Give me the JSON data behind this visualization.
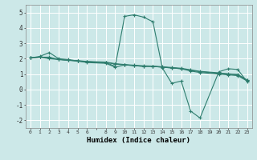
{
  "xlabel": "Humidex (Indice chaleur)",
  "ylabel": "",
  "bg_color": "#cce8e8",
  "grid_color": "#ffffff",
  "line_color": "#2e7d6e",
  "xlim": [
    -0.5,
    23.5
  ],
  "ylim": [
    -2.5,
    5.5
  ],
  "yticks": [
    -2,
    -1,
    0,
    1,
    2,
    3,
    4,
    5
  ],
  "xtick_vals": [
    0,
    1,
    2,
    3,
    4,
    5,
    6,
    8,
    9,
    10,
    11,
    12,
    13,
    14,
    15,
    16,
    17,
    18,
    19,
    20,
    21,
    22,
    23
  ],
  "lines": [
    {
      "x": [
        0,
        1,
        2,
        3,
        4,
        5,
        6,
        8,
        9,
        10,
        11,
        12,
        13,
        14,
        15,
        16,
        17,
        18,
        20,
        21,
        22,
        23
      ],
      "y": [
        2.05,
        2.15,
        2.4,
        2.0,
        1.95,
        1.85,
        1.8,
        1.75,
        1.5,
        4.75,
        4.85,
        4.7,
        4.4,
        1.4,
        0.4,
        0.55,
        -1.4,
        -1.85,
        1.15,
        1.35,
        1.3,
        0.5
      ]
    },
    {
      "x": [
        0,
        1,
        2,
        3,
        4,
        5,
        6,
        8,
        9,
        10,
        11,
        12,
        13,
        14,
        15,
        16,
        17,
        18,
        20,
        21,
        22,
        23
      ],
      "y": [
        2.05,
        2.1,
        2.1,
        1.95,
        1.9,
        1.85,
        1.75,
        1.7,
        1.45,
        1.6,
        1.55,
        1.5,
        1.5,
        1.45,
        1.4,
        1.35,
        1.2,
        1.1,
        1.0,
        0.95,
        0.9,
        0.55
      ]
    },
    {
      "x": [
        0,
        1,
        2,
        3,
        4,
        5,
        6,
        8,
        9,
        10,
        11,
        12,
        13,
        14,
        15,
        16,
        17,
        18,
        20,
        21,
        22,
        23
      ],
      "y": [
        2.05,
        2.1,
        2.0,
        1.95,
        1.9,
        1.85,
        1.8,
        1.75,
        1.65,
        1.6,
        1.55,
        1.5,
        1.5,
        1.45,
        1.4,
        1.35,
        1.25,
        1.15,
        1.05,
        1.0,
        0.95,
        0.6
      ]
    },
    {
      "x": [
        0,
        1,
        2,
        3,
        4,
        5,
        6,
        8,
        9,
        10,
        11,
        12,
        13,
        14,
        15,
        16,
        17,
        18,
        20,
        21,
        22,
        23
      ],
      "y": [
        2.05,
        2.1,
        2.05,
        1.95,
        1.9,
        1.88,
        1.82,
        1.78,
        1.68,
        1.62,
        1.58,
        1.54,
        1.52,
        1.48,
        1.43,
        1.38,
        1.28,
        1.18,
        1.08,
        1.02,
        0.98,
        0.62
      ]
    }
  ]
}
